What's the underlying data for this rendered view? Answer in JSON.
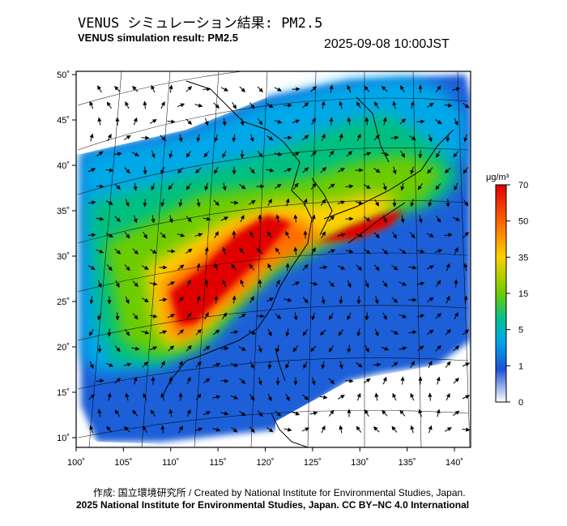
{
  "title_jp": "VENUS シミュレーション結果: PM2.5",
  "title_en": "VENUS simulation result: PM2.5",
  "timestamp": "2025-09-08 10:00JST",
  "x_ticks": [
    "100˚",
    "105˚",
    "110˚",
    "115˚",
    "120˚",
    "125˚",
    "130˚",
    "135˚",
    "140˚"
  ],
  "y_ticks": [
    "50˚",
    "45˚",
    "40˚",
    "35˚",
    "30˚",
    "25˚",
    "20˚",
    "15˚",
    "10˚"
  ],
  "colorbar": {
    "unit": "μg/m³",
    "labels": [
      "70",
      "50",
      "35",
      "15",
      "5",
      "1",
      "0"
    ],
    "colors": [
      "#e00000",
      "#ff7a00",
      "#ffd400",
      "#7fd400",
      "#00c878",
      "#00a0e0",
      "#2050d0",
      "#ffffff"
    ]
  },
  "credit_line1": "作成: 国立環境研究所 / Created by National Institute for Environmental Studies, Japan.",
  "credit_line2": "2025 National Institute for Environmental Studies, Japan. CC BY−NC 4.0 International",
  "colors": {
    "coast": "#000000",
    "grid": "#000000",
    "background": "#ffffff"
  }
}
